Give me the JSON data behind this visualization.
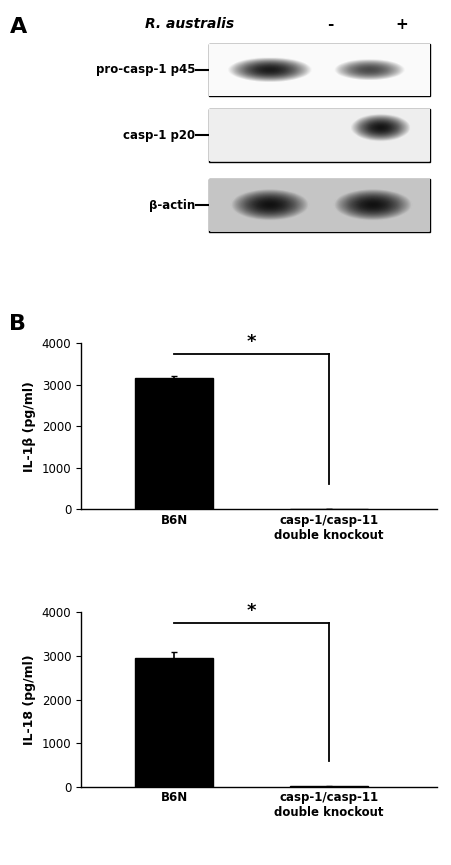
{
  "panel_A_label": "A",
  "panel_B_label": "B",
  "r_australis_label": "R. australis",
  "minus_label": "-",
  "plus_label": "+",
  "blot_labels": [
    "pro-casp-1 p45",
    "casp-1 p20",
    "β-actin"
  ],
  "bar_categories": [
    "B6N",
    "casp-1/casp-11\ndouble knockout"
  ],
  "il1b_values": [
    3150,
    15
  ],
  "il1b_errors": [
    55,
    5
  ],
  "il18_values": [
    2950,
    15
  ],
  "il18_errors": [
    130,
    5
  ],
  "il1b_ylabel": "IL-1β (pg/ml)",
  "il18_ylabel": "IL-18 (pg/ml)",
  "ylim": [
    0,
    4000
  ],
  "yticks": [
    0,
    1000,
    2000,
    3000,
    4000
  ],
  "bar_color": "#000000",
  "bar_width": 0.5,
  "significance_star": "*",
  "background_color": "#ffffff",
  "fig_width": 4.51,
  "fig_height": 8.65
}
